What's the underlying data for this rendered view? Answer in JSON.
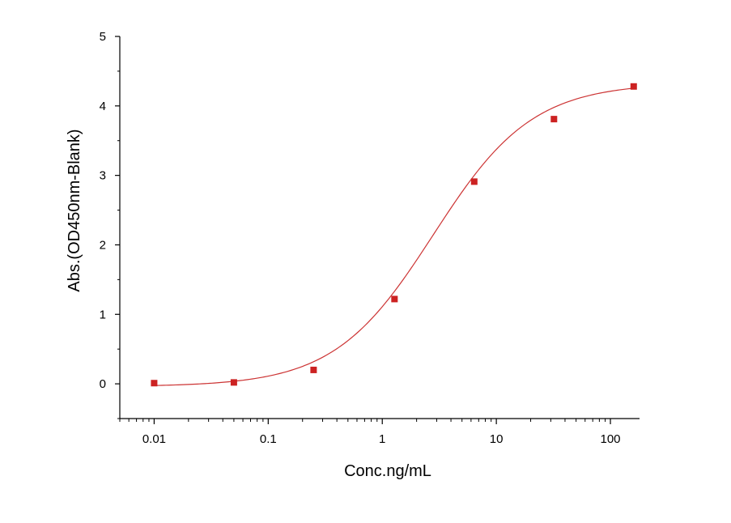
{
  "chart_data": {
    "type": "scatter",
    "xlabel": "Conc.ng/mL",
    "ylabel": "Abs.(OD450nm-Blank)",
    "xscale": "log",
    "xlim": [
      0.005,
      180
    ],
    "ylim": [
      -0.5,
      5
    ],
    "x_ticks": [
      0.01,
      0.1,
      1,
      10,
      100
    ],
    "x_tick_labels": [
      "0.01",
      "0.1",
      "1",
      "10",
      "100"
    ],
    "y_ticks": [
      0,
      1,
      2,
      3,
      4,
      5
    ],
    "y_tick_labels": [
      "0",
      "1",
      "2",
      "3",
      "4",
      "5"
    ],
    "grid": false,
    "point_color": "#cc2222",
    "curve_color": "#cc3333",
    "points": [
      {
        "x": 0.01,
        "y": 0.01
      },
      {
        "x": 0.05,
        "y": 0.02
      },
      {
        "x": 0.25,
        "y": 0.2
      },
      {
        "x": 1.28,
        "y": 1.22
      },
      {
        "x": 6.4,
        "y": 2.91
      },
      {
        "x": 32,
        "y": 3.81
      },
      {
        "x": 160,
        "y": 4.28
      }
    ],
    "fit_curve": {
      "type": "4PL",
      "bottom": -0.04,
      "top": 4.33,
      "ec50": 2.8,
      "hill": 1.0
    }
  }
}
